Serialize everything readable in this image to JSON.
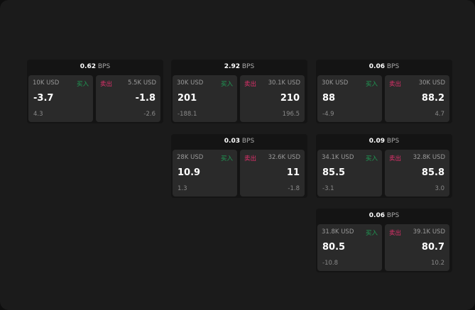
{
  "unit": "BPS",
  "buy_label": "买入",
  "sell_label": "卖出",
  "colors": {
    "buy": "#1f9d55",
    "sell": "#e0306b"
  },
  "cards": [
    {
      "spread": "0.62",
      "buy": {
        "size": "10K USD",
        "price": "-3.7",
        "change": "4.3"
      },
      "sell": {
        "size": "5.5K USD",
        "price": "-1.8",
        "change": "-2.6"
      }
    },
    {
      "spread": "2.92",
      "buy": {
        "size": "30K USD",
        "price": "201",
        "change": "-188.1"
      },
      "sell": {
        "size": "30.1K USD",
        "price": "210",
        "change": "196.5"
      }
    },
    {
      "spread": "0.06",
      "buy": {
        "size": "30K USD",
        "price": "88",
        "change": "-4.9"
      },
      "sell": {
        "size": "30K USD",
        "price": "88.2",
        "change": "4.7"
      }
    },
    {
      "spread": "0.03",
      "buy": {
        "size": "28K USD",
        "price": "10.9",
        "change": "1.3"
      },
      "sell": {
        "size": "32.6K USD",
        "price": "11",
        "change": "-1.8"
      }
    },
    {
      "spread": "0.09",
      "buy": {
        "size": "34.1K USD",
        "price": "85.5",
        "change": "-3.1"
      },
      "sell": {
        "size": "32.8K USD",
        "price": "85.8",
        "change": "3.0"
      }
    },
    {
      "spread": "0.06",
      "buy": {
        "size": "31.8K USD",
        "price": "80.5",
        "change": "-10.8"
      },
      "sell": {
        "size": "39.1K USD",
        "price": "80.7",
        "change": "10.2"
      }
    }
  ]
}
